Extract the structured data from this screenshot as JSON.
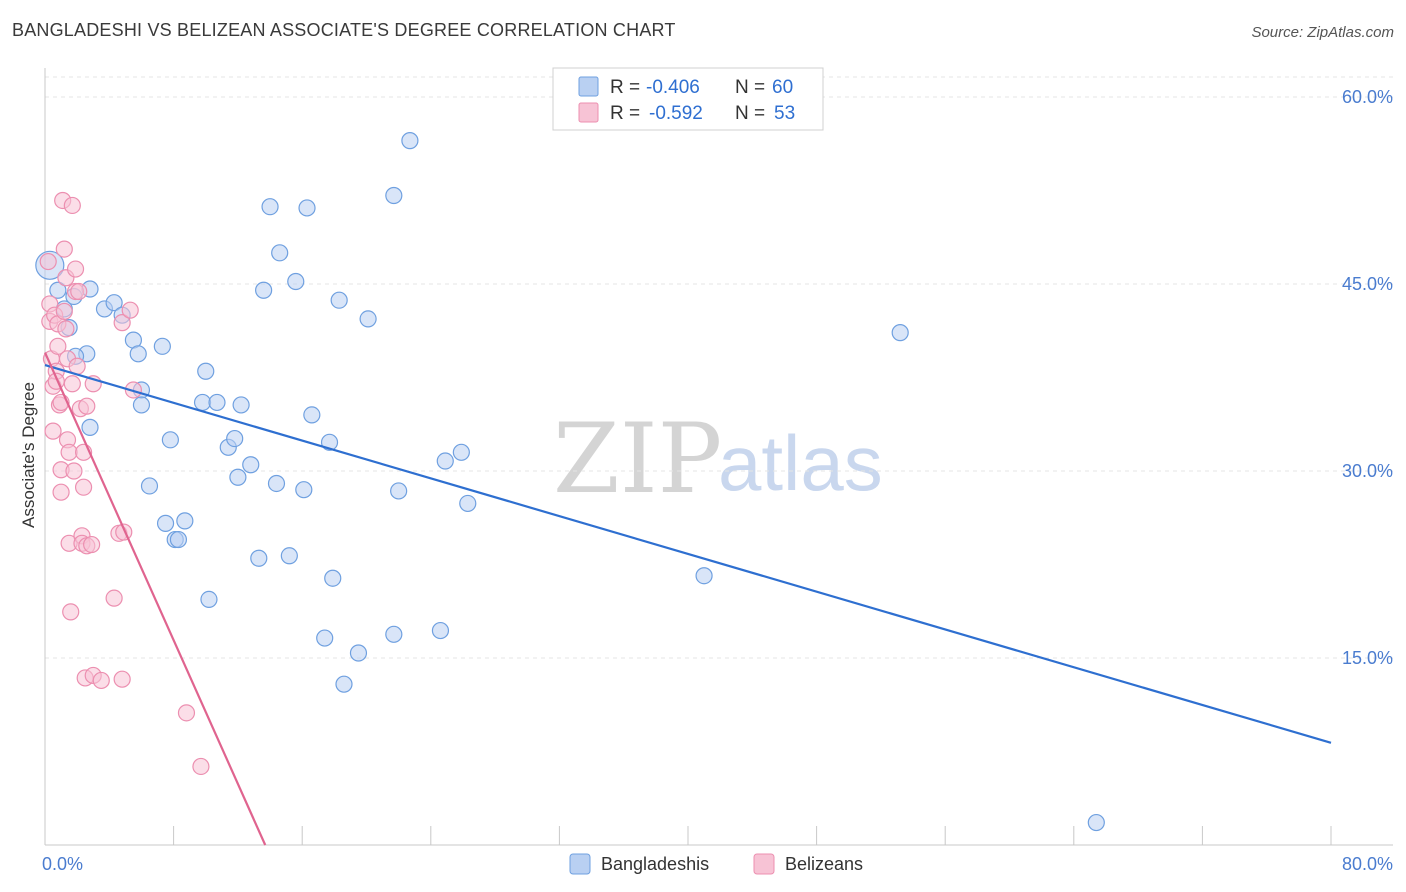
{
  "title": "BANGLADESHI VS BELIZEAN ASSOCIATE'S DEGREE CORRELATION CHART",
  "source": "Source: ZipAtlas.com",
  "watermark": {
    "zip": "ZIP",
    "atlas": "atlas"
  },
  "chart_data": {
    "type": "scatter",
    "xlabel": "",
    "ylabel": "Associate's Degree",
    "xlim": [
      0,
      80
    ],
    "ylim": [
      0,
      61.5
    ],
    "x_tick_labels": [
      {
        "value": 0,
        "label": "0.0%"
      },
      {
        "value": 80,
        "label": "80.0%"
      }
    ],
    "x_minor_ticks": [
      8,
      16,
      24,
      32,
      40,
      48,
      56,
      64,
      72,
      80
    ],
    "y_ticks": [
      {
        "value": 15,
        "label": "15.0%"
      },
      {
        "value": 30,
        "label": "30.0%"
      },
      {
        "value": 45,
        "label": "45.0%"
      },
      {
        "value": 60,
        "label": "60.0%"
      }
    ],
    "grid": true,
    "legend_position": "top-center",
    "series": [
      {
        "name": "Bangladeshis",
        "color": "#6fa0e0",
        "fill": "#b9d0f2",
        "line_color": "#2e6fd0",
        "r_label": "R =",
        "r_value": "-0.406",
        "n_label": "N =",
        "n_value": "60",
        "trend": {
          "x0": 0,
          "y0": 38.5,
          "x1": 80,
          "y1": 8.2
        },
        "points": [
          [
            0.3,
            46.5
          ],
          [
            0.8,
            44.5
          ],
          [
            1.2,
            43
          ],
          [
            1.5,
            41.5
          ],
          [
            1.8,
            44
          ],
          [
            2.8,
            44.6
          ],
          [
            2.6,
            39.4
          ],
          [
            2.8,
            33.5
          ],
          [
            3.7,
            43
          ],
          [
            4.3,
            43.5
          ],
          [
            4.8,
            42.5
          ],
          [
            5.5,
            40.5
          ],
          [
            5.8,
            39.4
          ],
          [
            6,
            36.5
          ],
          [
            6,
            35.3
          ],
          [
            6.5,
            28.8
          ],
          [
            7.3,
            40
          ],
          [
            7.5,
            25.8
          ],
          [
            7.8,
            32.5
          ],
          [
            8.1,
            24.5
          ],
          [
            8.3,
            24.5
          ],
          [
            8.7,
            26
          ],
          [
            9.8,
            35.5
          ],
          [
            10,
            38
          ],
          [
            10.2,
            19.7
          ],
          [
            10.7,
            35.5
          ],
          [
            11.4,
            31.9
          ],
          [
            11.8,
            32.6
          ],
          [
            12,
            29.5
          ],
          [
            12.2,
            35.3
          ],
          [
            12.8,
            30.5
          ],
          [
            13.3,
            23
          ],
          [
            13.6,
            44.5
          ],
          [
            14,
            51.2
          ],
          [
            14.4,
            29
          ],
          [
            14.6,
            47.5
          ],
          [
            15.2,
            23.2
          ],
          [
            15.6,
            45.2
          ],
          [
            16.1,
            28.5
          ],
          [
            16.3,
            51.1
          ],
          [
            16.6,
            34.5
          ],
          [
            17.4,
            16.6
          ],
          [
            17.7,
            32.3
          ],
          [
            17.9,
            21.4
          ],
          [
            18.3,
            43.7
          ],
          [
            18.6,
            12.9
          ],
          [
            19.5,
            15.4
          ],
          [
            20.1,
            42.2
          ],
          [
            21.7,
            16.9
          ],
          [
            21.7,
            52.1
          ],
          [
            22,
            28.4
          ],
          [
            22.7,
            56.5
          ],
          [
            24.6,
            17.2
          ],
          [
            24.9,
            30.8
          ],
          [
            25.9,
            31.5
          ],
          [
            26.3,
            27.4
          ],
          [
            41,
            21.6
          ],
          [
            53.2,
            41.1
          ],
          [
            65.4,
            1.8
          ],
          [
            1.9,
            39.2
          ]
        ]
      },
      {
        "name": "Belizeans",
        "color": "#ec8fb0",
        "fill": "#f7c3d5",
        "line_color": "#e0648f",
        "r_label": "R =",
        "r_value": "-0.592",
        "n_label": "N =",
        "n_value": "53",
        "trend": {
          "x0": 0,
          "y0": 39.5,
          "x1": 13.7,
          "y1": 0
        },
        "points": [
          [
            0.2,
            46.8
          ],
          [
            0.3,
            43.4
          ],
          [
            0.3,
            42
          ],
          [
            0.4,
            39
          ],
          [
            0.5,
            36.8
          ],
          [
            0.5,
            33.2
          ],
          [
            0.6,
            42.5
          ],
          [
            0.7,
            38
          ],
          [
            0.7,
            37.2
          ],
          [
            0.8,
            41.8
          ],
          [
            0.8,
            40
          ],
          [
            0.9,
            35.3
          ],
          [
            1,
            28.3
          ],
          [
            1,
            30.1
          ],
          [
            1,
            35.5
          ],
          [
            1.1,
            51.7
          ],
          [
            1.2,
            47.8
          ],
          [
            1.2,
            42.8
          ],
          [
            1.3,
            45.5
          ],
          [
            1.3,
            41.4
          ],
          [
            1.4,
            39
          ],
          [
            1.4,
            32.5
          ],
          [
            1.5,
            31.5
          ],
          [
            1.5,
            24.2
          ],
          [
            1.6,
            18.7
          ],
          [
            1.7,
            51.3
          ],
          [
            1.7,
            37
          ],
          [
            1.8,
            30
          ],
          [
            1.9,
            46.2
          ],
          [
            1.9,
            44.4
          ],
          [
            2,
            38.4
          ],
          [
            2.1,
            44.4
          ],
          [
            2.2,
            35
          ],
          [
            2.3,
            24.8
          ],
          [
            2.3,
            24.2
          ],
          [
            2.4,
            31.5
          ],
          [
            2.4,
            28.7
          ],
          [
            2.5,
            13.4
          ],
          [
            2.6,
            35.2
          ],
          [
            2.6,
            24
          ],
          [
            2.9,
            24.1
          ],
          [
            3,
            37
          ],
          [
            3,
            13.6
          ],
          [
            3.5,
            13.2
          ],
          [
            4.3,
            19.8
          ],
          [
            4.6,
            25
          ],
          [
            4.8,
            41.9
          ],
          [
            4.8,
            13.3
          ],
          [
            4.9,
            25.1
          ],
          [
            5.3,
            42.9
          ],
          [
            5.5,
            36.5
          ],
          [
            8.8,
            10.6
          ],
          [
            9.7,
            6.3
          ]
        ]
      }
    ]
  }
}
